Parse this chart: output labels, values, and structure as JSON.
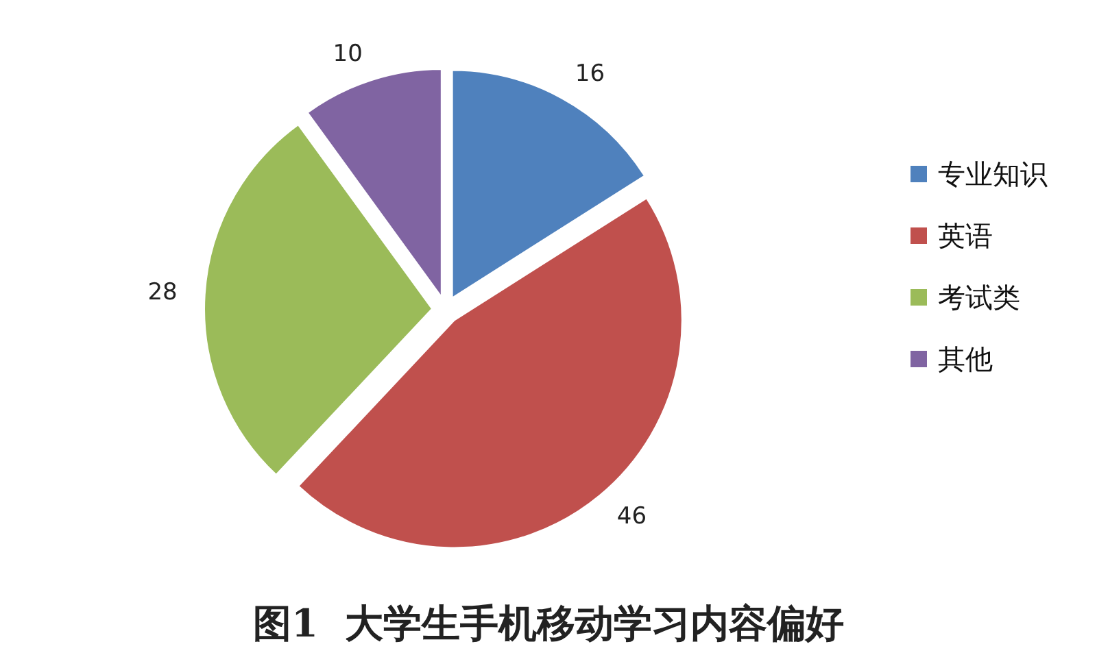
{
  "chart_data": {
    "type": "pie",
    "title": "图1  大学生手机移动学习内容偏好",
    "categories": [
      "专业知识",
      "英语",
      "考试类",
      "其他"
    ],
    "values": [
      16,
      46,
      28,
      10
    ],
    "colors": [
      "#4f81bd",
      "#c0504d",
      "#9bbb59",
      "#8064a2"
    ],
    "data_labels": true,
    "legend": "right"
  }
}
